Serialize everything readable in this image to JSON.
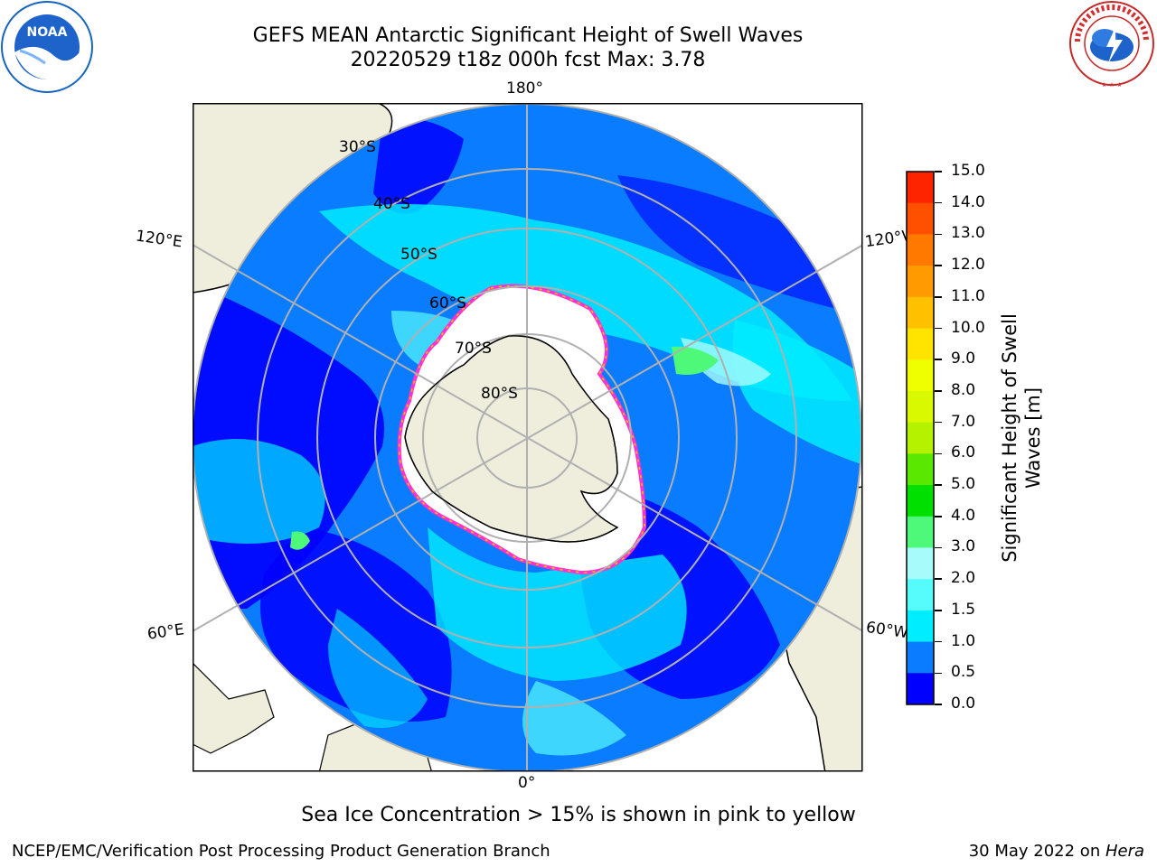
{
  "header": {
    "title_line1": "GEFS MEAN Antarctic Significant Height of Swell Waves",
    "title_line2": "20220529 t18z 000h fcst   Max: 3.78"
  },
  "logos": {
    "left": {
      "text": "NOAA",
      "icon": "noaa-logo-icon",
      "color": "#1565c0"
    },
    "right": {
      "text": "NATIONAL WEATHER SERVICE",
      "icon": "nws-logo-icon",
      "color": "#d32f2f"
    }
  },
  "map": {
    "projection": "south-polar-stereographic",
    "longitude_labels": {
      "top": "180°",
      "bottom": "0°",
      "upper_left": "120°E",
      "upper_right": "120°W",
      "lower_left": "60°E",
      "lower_right": "60°W"
    },
    "latitude_labels": [
      "30°S",
      "40°S",
      "50°S",
      "60°S",
      "70°S",
      "80°S"
    ],
    "colors": {
      "land": "#efeedc",
      "ocean_base": "#0a7cff",
      "sea_ice": "#ffffff",
      "ice_edge": "#ff33cc",
      "gridline": "#b0b0b0"
    }
  },
  "colorbar": {
    "label_line1": "Significant Height of Swell",
    "label_line2": "Waves [m]",
    "ticks": [
      "15.0",
      "14.0",
      "13.0",
      "12.0",
      "11.0",
      "10.0",
      "9.0",
      "8.0",
      "7.0",
      "6.0",
      "5.0",
      "4.0",
      "3.0",
      "2.0",
      "1.5",
      "1.0",
      "0.5",
      "0.0"
    ],
    "colors_low_to_high": [
      "#0000ff",
      "#0a7cff",
      "#00ecff",
      "#56fcfc",
      "#a8fbfb",
      "#4ef97a",
      "#00e000",
      "#5be800",
      "#b4f200",
      "#d8f900",
      "#f0ff00",
      "#ffe400",
      "#ffc000",
      "#ff9a00",
      "#ff7800",
      "#ff5000",
      "#ff2400",
      "#ff0000"
    ]
  },
  "note": "Sea Ice Concentration > 15% is shown in pink to yellow",
  "footer": {
    "left": "NCEP/EMC/Verification Post Processing Product Generation Branch",
    "right_prefix": "30 May 2022 on ",
    "right_system": "Hera"
  }
}
